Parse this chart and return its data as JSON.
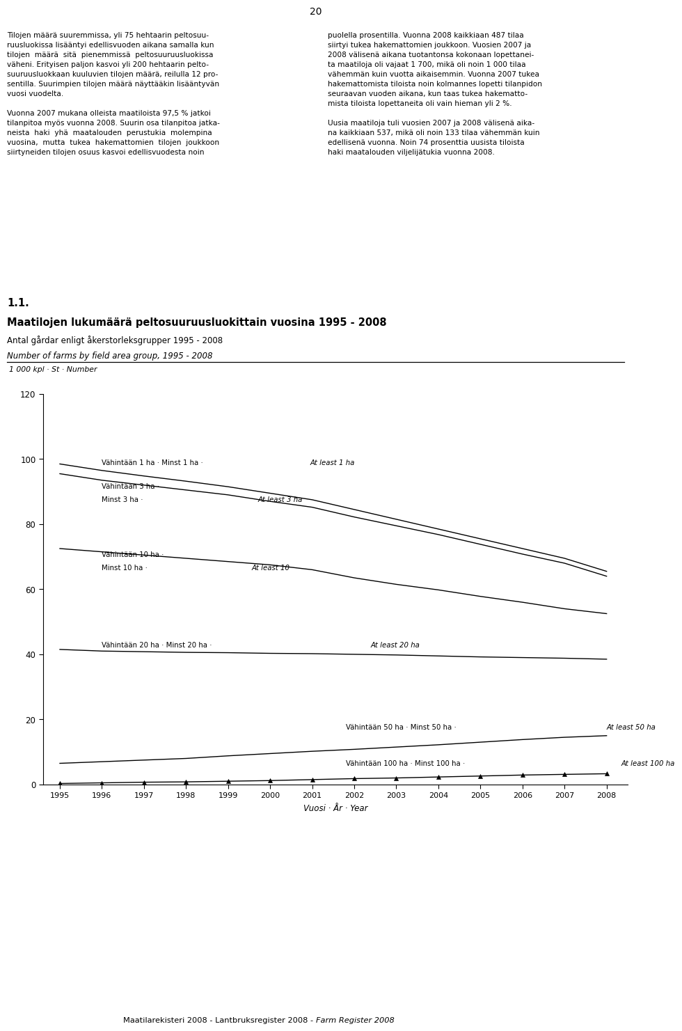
{
  "page_number": "20",
  "text_left": "Tilojen määrä suuremmissa, yli 75 hehtaarin peltosuu-\nruusluokissa lisääntyi edellisvuoden aikana samalla kun\ntilojen  määrä  sitä  pienemmissä  peltosuuruusluokissa\nväheni. Erityisen paljon kasvoi yli 200 hehtaarin pelto-\nsuuruusluokkaan kuuluvien tilojen määrä, reilulla 12 pro-\nsentilla. Suurimpien tilojen määrä näyttääkin lisääntyvän\nvuosi vuodelta.\n\nVuonna 2007 mukana olleista maatiloista 97,5 % jatkoi\ntilanpitoa myös vuonna 2008. Suurin osa tilanpitoa jatka-\nneista  haki  yhä  maatalouden  perustukia  molempina\nvuosina,  mutta  tukea  hakemattomien  tilojen  joukkoon\nsiirtyneiden tilojen osuus kasvoi edellisvuodesta noin",
  "text_right": "puolella prosentilla. Vuonna 2008 kaikkiaan 487 tilaa\nsiirtyi tukea hakemattomien joukkoon. Vuosien 2007 ja\n2008 välisenä aikana tuotantonsa kokonaan lopettanei-\nta maatiloja oli vajaat 1 700, mikä oli noin 1 000 tilaa\nvähemmän kuin vuotta aikaisemmin. Vuonna 2007 tukea\nhakemattomista tiloista noin kolmannes lopetti tilanpidon\nseuraavan vuoden aikana, kun taas tukea hakematto-\nmista tiloista lopettaneita oli vain hieman yli 2 %.\n\nUusia maatiloja tuli vuosien 2007 ja 2008 välisenä aika-\nna kaikkiaan 537, mikä oli noin 133 tilaa vähemmän kuin\nedellisenä vuonna. Noin 74 prosenttia uusista tiloista\nhaki maatalouden viljelijätukia vuonna 2008.",
  "section_num": "1.1.",
  "title_fi": "Maatilojen lukumäärä peltosuuruusluokittain vuosina 1995 - 2008",
  "title_sv": "Antal gårdar enligt åkerstorleksgrupper 1995 - 2008",
  "title_en": "Number of farms by field area group, 1995 - 2008",
  "ylabel": "1 000 kpl · St · Number",
  "xlabel": "Vuosi · År · Year",
  "years": [
    1995,
    1996,
    1997,
    1998,
    1999,
    2000,
    2001,
    2002,
    2003,
    2004,
    2005,
    2006,
    2007,
    2008
  ],
  "line1_values": [
    98.5,
    96.5,
    94.8,
    93.2,
    91.5,
    89.5,
    87.5,
    84.5,
    81.5,
    78.5,
    75.5,
    72.5,
    69.5,
    65.5
  ],
  "line2_values": [
    95.5,
    93.5,
    92.0,
    90.5,
    89.0,
    87.0,
    85.2,
    82.2,
    79.5,
    76.8,
    73.8,
    70.8,
    68.0,
    64.0
  ],
  "line3_values": [
    72.5,
    71.5,
    70.5,
    69.5,
    68.5,
    67.5,
    66.0,
    63.5,
    61.5,
    59.8,
    57.8,
    56.0,
    54.0,
    52.5
  ],
  "line4_values": [
    41.5,
    41.0,
    40.8,
    40.6,
    40.5,
    40.3,
    40.2,
    40.0,
    39.8,
    39.5,
    39.2,
    39.0,
    38.8,
    38.5
  ],
  "line5_values": [
    6.5,
    7.0,
    7.5,
    8.0,
    8.8,
    9.5,
    10.2,
    10.8,
    11.5,
    12.2,
    13.0,
    13.8,
    14.5,
    15.0
  ],
  "line6_values": [
    0.3,
    0.5,
    0.7,
    0.8,
    1.0,
    1.2,
    1.5,
    1.8,
    2.0,
    2.3,
    2.6,
    2.9,
    3.1,
    3.3
  ],
  "label1_normal": "Vähintään 1 ha · Minst 1 ha · ",
  "label1_italic": "At least 1 ha",
  "label2_normal_l1": "Vähintään 3 ha ·",
  "label2_normal_l2": "Minst 3 ha · ",
  "label2_italic": "At least 3 ha",
  "label3_normal_l1": "Vähintään 10 ha ·",
  "label3_normal_l2": "Minst 10 ha · ",
  "label3_italic": "At least 10",
  "label4_normal": "Vähintään 20 ha · Minst 20 ha · ",
  "label4_italic": "At least 20 ha",
  "label5_normal": "Vähintään 50 ha · Minst 50 ha · ",
  "label5_italic": "At least 50 ha",
  "label6_normal": "Vähintään 100 ha · Minst 100 ha · ",
  "label6_italic": "At least 100 ha",
  "footer_normal": "Maatilarekisteri 2008 - Lantbruksregister 2008 - ",
  "footer_italic": "Farm Register 2008",
  "ylim": [
    0,
    120
  ],
  "yticks": [
    0,
    20,
    40,
    60,
    80,
    100,
    120
  ],
  "bg_color": "#ffffff",
  "line_color": "#000000"
}
